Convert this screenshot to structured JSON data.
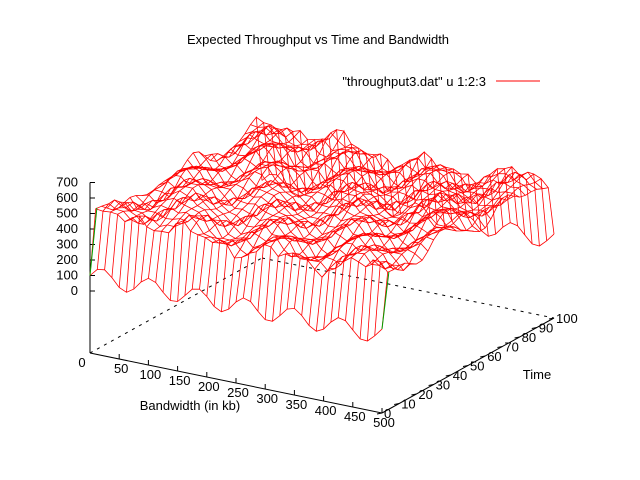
{
  "chart_data": {
    "type": "surface3d",
    "title": "Expected Throughput vs Time and Bandwidth",
    "xlabel": "Bandwidth (in kb)",
    "ylabel": "Time",
    "zlabel": "",
    "x_ticks": [
      "0",
      "50",
      "100",
      "150",
      "200",
      "250",
      "300",
      "350",
      "400",
      "450",
      "500"
    ],
    "y_ticks": [
      "0",
      "10",
      "20",
      "30",
      "40",
      "50",
      "60",
      "70",
      "80",
      "90",
      "100"
    ],
    "z_ticks": [
      "0",
      "100",
      "200",
      "300",
      "400",
      "500",
      "600",
      "700"
    ],
    "xlim": [
      0,
      500
    ],
    "ylim": [
      0,
      100
    ],
    "zlim": [
      0,
      700
    ],
    "legend": {
      "label": "\"throughput3.dat\" u 1:2:3",
      "placement": "top-right"
    },
    "series": [
      {
        "name": "\"throughput3.dat\" u 1:2:3",
        "color": "#ff0000",
        "hidden_side_color": "#00a000",
        "typical_value": 450,
        "approx_range": [
          400,
          650
        ],
        "notes": "dips near 100 at Time edges"
      }
    ]
  }
}
